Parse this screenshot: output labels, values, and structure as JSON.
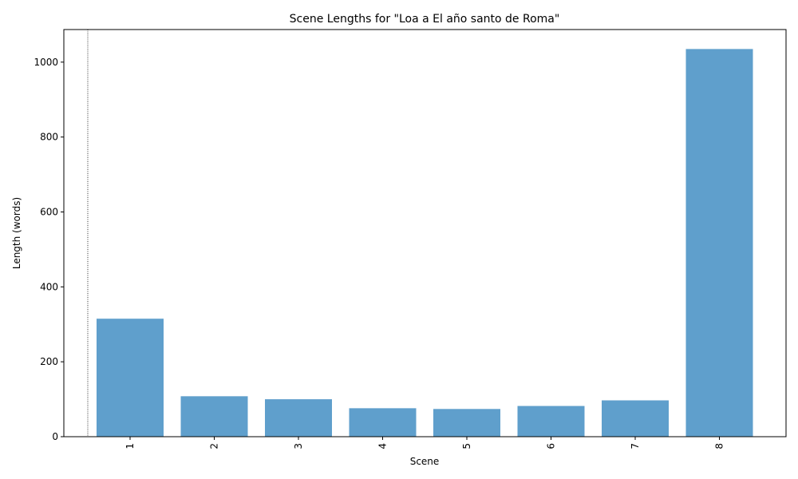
{
  "chart_data": {
    "type": "bar",
    "title": "Scene Lengths for \"Loa a El año santo de Roma\"",
    "xlabel": "Scene",
    "ylabel": "Length (words)",
    "categories": [
      "1",
      "2",
      "3",
      "4",
      "5",
      "6",
      "7",
      "8"
    ],
    "values": [
      315,
      108,
      100,
      76,
      74,
      82,
      97,
      1035
    ],
    "ylim": [
      0,
      1087
    ],
    "yticks": [
      "0",
      "200",
      "400",
      "600",
      "800",
      "1000"
    ],
    "bar_color": "#5f9fcc",
    "grid": false,
    "legend": "none",
    "reference_line": {
      "style": "dotted",
      "color": "#000000"
    }
  }
}
